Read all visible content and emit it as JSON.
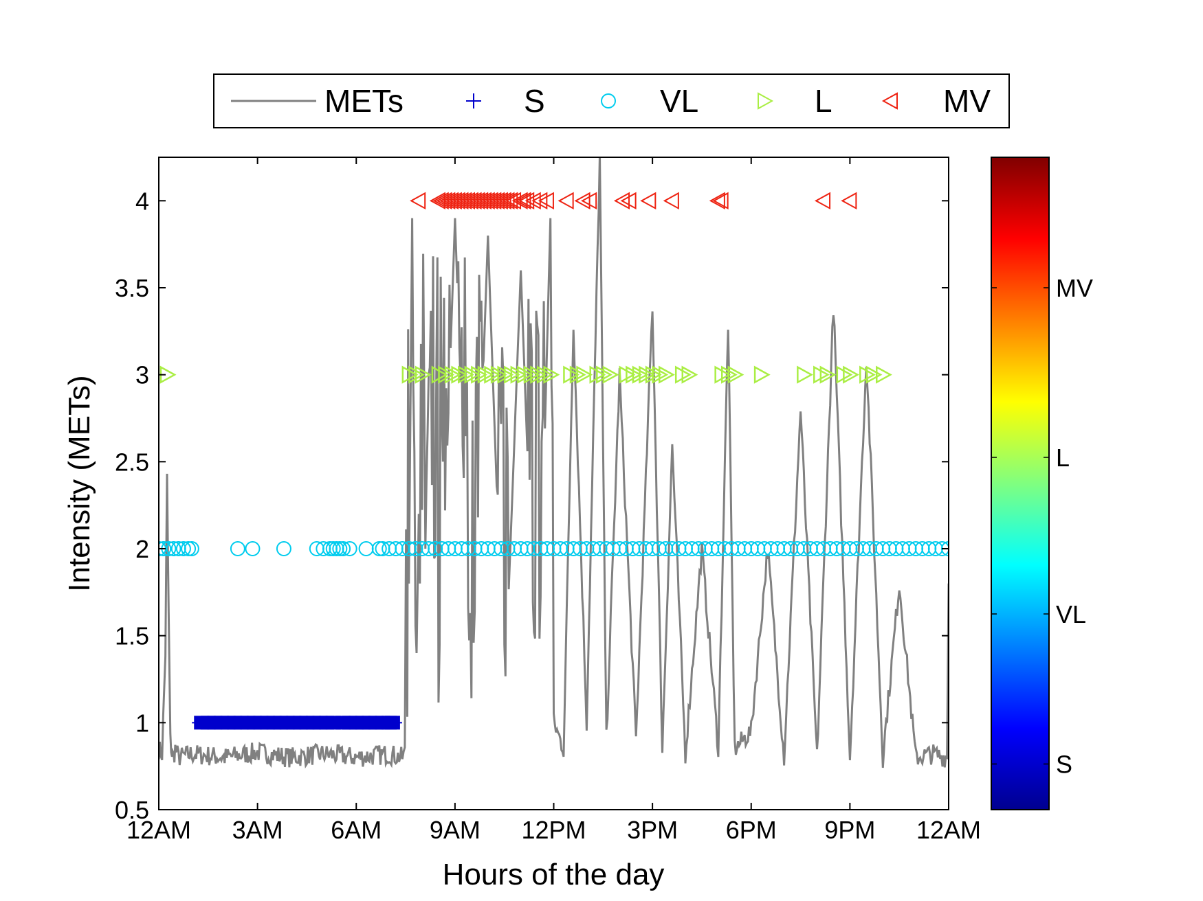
{
  "chart_data": {
    "type": "line",
    "title": "",
    "xlabel": "Hours of the day",
    "ylabel": "Intensity (METs)",
    "xlim": [
      0,
      24
    ],
    "ylim": [
      0.5,
      4.25
    ],
    "xticks": [
      {
        "value": 0,
        "label": "12AM"
      },
      {
        "value": 3,
        "label": "3AM"
      },
      {
        "value": 6,
        "label": "6AM"
      },
      {
        "value": 9,
        "label": "9AM"
      },
      {
        "value": 12,
        "label": "12PM"
      },
      {
        "value": 15,
        "label": "3PM"
      },
      {
        "value": 18,
        "label": "6PM"
      },
      {
        "value": 21,
        "label": "9PM"
      },
      {
        "value": 24,
        "label": "12AM"
      }
    ],
    "yticks": [
      {
        "value": 0.5,
        "label": "0.5"
      },
      {
        "value": 1,
        "label": "1"
      },
      {
        "value": 1.5,
        "label": "1.5"
      },
      {
        "value": 2,
        "label": "2"
      },
      {
        "value": 2.5,
        "label": "2.5"
      },
      {
        "value": 3,
        "label": "3"
      },
      {
        "value": 3.5,
        "label": "3.5"
      },
      {
        "value": 4,
        "label": "4"
      }
    ],
    "legend_position": "top",
    "grid": false,
    "legend": [
      {
        "key": "mets",
        "label": "METs",
        "marker": "line",
        "color": "#808080"
      },
      {
        "key": "S",
        "label": "S",
        "marker": "plus",
        "color": "#0000cc"
      },
      {
        "key": "VL",
        "label": "VL",
        "marker": "circle",
        "color": "#00ccee"
      },
      {
        "key": "L",
        "label": "L",
        "marker": "triangle-right",
        "color": "#aaee44"
      },
      {
        "key": "MV",
        "label": "MV",
        "marker": "triangle-left",
        "color": "#ee2211"
      }
    ],
    "mets_series": {
      "name": "METs",
      "color": "#808080",
      "baseline_night": 0.82,
      "baseline_day": 0.85,
      "x": [
        0.0,
        0.1,
        0.2,
        0.25,
        0.3,
        0.35,
        0.4,
        0.45,
        0.5,
        0.6,
        1.0,
        2.0,
        3.0,
        4.0,
        5.0,
        6.0,
        7.0,
        7.4,
        7.55,
        7.6,
        7.7,
        7.8,
        7.9,
        8.0,
        8.2,
        8.5,
        9.0,
        9.5,
        10.0,
        10.5,
        11.0,
        11.5,
        11.9,
        12.0,
        12.3,
        12.6,
        13.0,
        13.4,
        13.6,
        14.0,
        14.5,
        15.0,
        15.3,
        15.6,
        16.0,
        16.5,
        17.0,
        17.3,
        17.5,
        18.0,
        18.5,
        19.0,
        19.5,
        20.0,
        20.5,
        21.0,
        21.5,
        22.0,
        22.5,
        23.0,
        23.5,
        23.95,
        24.0
      ],
      "y": [
        0.85,
        0.82,
        1.4,
        2.4,
        1.6,
        0.9,
        0.82,
        0.8,
        0.85,
        0.8,
        0.82,
        0.8,
        0.83,
        0.8,
        0.82,
        0.8,
        0.82,
        0.8,
        0.85,
        1.8,
        3.9,
        1.0,
        2.2,
        1.0,
        3.0,
        1.1,
        3.9,
        1.1,
        3.8,
        1.1,
        3.6,
        1.0,
        3.9,
        1.0,
        0.85,
        3.3,
        1.0,
        4.25,
        0.9,
        3.0,
        0.9,
        3.4,
        0.85,
        2.6,
        0.82,
        2.0,
        0.85,
        3.3,
        0.85,
        0.95,
        2.0,
        0.8,
        2.8,
        0.8,
        3.4,
        0.8,
        3.1,
        0.8,
        1.8,
        0.8,
        0.82,
        0.8,
        1.8
      ]
    },
    "marker_series": [
      {
        "name": "S",
        "y": 1,
        "color": "#0000cc",
        "marker": "plus",
        "x": [
          1.3,
          1.5,
          1.7,
          1.9,
          2.1,
          2.3,
          2.5,
          2.7,
          2.9,
          3.1,
          3.3,
          3.5,
          3.7,
          3.9,
          4.1,
          4.3,
          4.5,
          4.7,
          4.9,
          5.1,
          5.3,
          5.6,
          5.8,
          6.0,
          6.2,
          6.4,
          6.6,
          6.8,
          7.0,
          7.1
        ]
      },
      {
        "name": "VL",
        "y": 2,
        "color": "#00ccee",
        "marker": "circle",
        "x": [
          0.0,
          0.15,
          0.3,
          0.45,
          0.6,
          0.75,
          0.9,
          1.0,
          2.4,
          2.85,
          3.8,
          4.8,
          5.0,
          5.2,
          5.3,
          5.4,
          5.5,
          5.6,
          5.8,
          6.3,
          6.7,
          6.8,
          7.0,
          7.2,
          7.4,
          7.6,
          7.8,
          8.0,
          8.2,
          8.4,
          8.6,
          8.8,
          9.0,
          9.2,
          9.4,
          9.6,
          9.8,
          10.0,
          10.2,
          10.4,
          10.6,
          10.8,
          11.0,
          11.2,
          11.4,
          11.6,
          11.8,
          12.0,
          12.2,
          12.4,
          12.6,
          12.8,
          13.0,
          13.2,
          13.4,
          13.6,
          13.8,
          14.0,
          14.2,
          14.4,
          14.6,
          14.8,
          15.0,
          15.2,
          15.4,
          15.6,
          15.8,
          16.0,
          16.2,
          16.4,
          16.6,
          16.8,
          17.0,
          17.2,
          17.4,
          17.6,
          17.8,
          18.0,
          18.2,
          18.4,
          18.6,
          18.8,
          19.0,
          19.2,
          19.4,
          19.6,
          19.8,
          20.0,
          20.2,
          20.4,
          20.6,
          20.8,
          21.0,
          21.2,
          21.4,
          21.6,
          21.8,
          22.0,
          22.2,
          22.4,
          22.6,
          22.8,
          23.0,
          23.2,
          23.4,
          23.6,
          23.8,
          24.0
        ]
      },
      {
        "name": "L",
        "y": 3,
        "color": "#aaee44",
        "marker": "triangle-right",
        "x": [
          0.25,
          7.6,
          7.8,
          8.0,
          8.5,
          8.7,
          8.9,
          9.1,
          9.3,
          9.5,
          9.7,
          9.9,
          10.1,
          10.3,
          10.5,
          10.7,
          10.9,
          11.1,
          11.3,
          11.5,
          11.7,
          11.9,
          12.5,
          12.7,
          12.9,
          13.3,
          13.5,
          13.7,
          14.2,
          14.4,
          14.6,
          14.8,
          15.0,
          15.2,
          15.4,
          15.9,
          16.1,
          17.1,
          17.3,
          17.5,
          18.3,
          19.6,
          20.1,
          20.3,
          20.8,
          21.0,
          21.5,
          21.7,
          22.0
        ]
      },
      {
        "name": "MV",
        "y": 4,
        "color": "#ee2211",
        "marker": "triangle-left",
        "x": [
          7.9,
          8.5,
          8.6,
          8.7,
          8.8,
          8.9,
          9.0,
          9.1,
          9.2,
          9.3,
          9.4,
          9.5,
          9.6,
          9.7,
          9.8,
          9.9,
          10.0,
          10.1,
          10.2,
          10.3,
          10.4,
          10.5,
          10.6,
          10.7,
          10.8,
          11.0,
          11.1,
          11.2,
          11.4,
          11.6,
          11.8,
          12.4,
          12.9,
          13.1,
          14.1,
          14.3,
          14.9,
          15.6,
          17.0,
          17.1,
          20.2,
          21.0
        ]
      }
    ],
    "colorbar": {
      "colormap": "jet",
      "labels": [
        {
          "label": "MV",
          "fraction": 0.8
        },
        {
          "label": "L",
          "fraction": 0.54
        },
        {
          "label": "VL",
          "fraction": 0.3
        },
        {
          "label": "S",
          "fraction": 0.07
        }
      ]
    }
  }
}
